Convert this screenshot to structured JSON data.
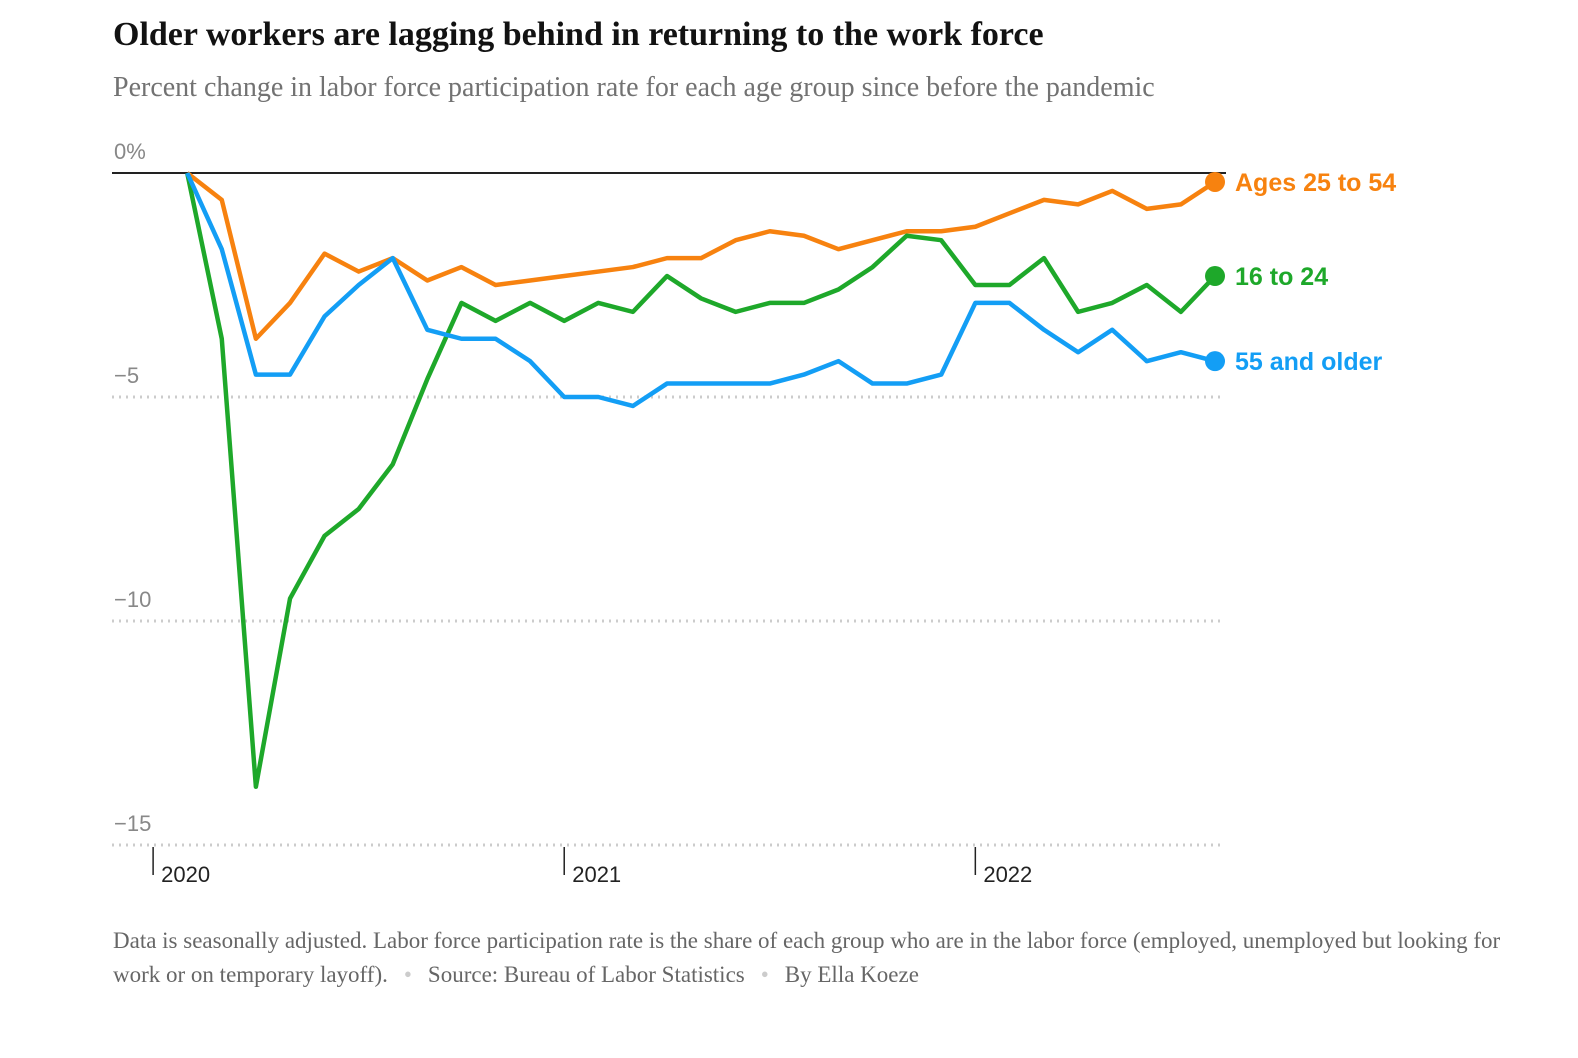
{
  "chart_data": {
    "type": "line",
    "title": "Older workers are lagging behind in returning to the work force",
    "subtitle": "Percent change in labor force participation rate for each age group since before the pandemic",
    "x": [
      2020.083,
      2020.167,
      2020.25,
      2020.333,
      2020.417,
      2020.5,
      2020.583,
      2020.667,
      2020.75,
      2020.833,
      2020.917,
      2021,
      2021.083,
      2021.167,
      2021.25,
      2021.333,
      2021.417,
      2021.5,
      2021.583,
      2021.667,
      2021.75,
      2021.833,
      2021.917,
      2022,
      2022.083,
      2022.167,
      2022.25,
      2022.333,
      2022.417,
      2022.5,
      2022.583
    ],
    "series": [
      {
        "name": "Ages 25 to 54",
        "color": "#f7820f",
        "values": [
          0,
          -0.6,
          -3.7,
          -2.9,
          -1.8,
          -2.2,
          -1.9,
          -2.4,
          -2.1,
          -2.5,
          -2.4,
          -2.3,
          -2.2,
          -2.1,
          -1.9,
          -1.9,
          -1.5,
          -1.3,
          -1.4,
          -1.7,
          -1.5,
          -1.3,
          -1.3,
          -1.2,
          -0.9,
          -0.6,
          -0.7,
          -0.4,
          -0.8,
          -0.7,
          -0.2
        ]
      },
      {
        "name": "16 to 24",
        "color": "#1ea82a",
        "values": [
          0,
          -3.7,
          -13.7,
          -9.5,
          -8.1,
          -7.5,
          -6.5,
          -4.6,
          -2.9,
          -3.3,
          -2.9,
          -3.3,
          -2.9,
          -3.1,
          -2.3,
          -2.8,
          -3.1,
          -2.9,
          -2.9,
          -2.6,
          -2.1,
          -1.4,
          -1.5,
          -2.5,
          -2.5,
          -1.9,
          -3.1,
          -2.9,
          -2.5,
          -3.1,
          -2.3
        ]
      },
      {
        "name": "55 and older",
        "color": "#139ef5",
        "values": [
          0,
          -1.7,
          -4.5,
          -4.5,
          -3.2,
          -2.5,
          -1.9,
          -3.5,
          -3.7,
          -3.7,
          -4.2,
          -5.0,
          -5.0,
          -5.2,
          -4.7,
          -4.7,
          -4.7,
          -4.7,
          -4.5,
          -4.2,
          -4.7,
          -4.7,
          -4.5,
          -2.9,
          -2.9,
          -3.5,
          -4.0,
          -3.5,
          -4.2,
          -4.0,
          -4.2
        ]
      }
    ],
    "xlim": [
      2019.9,
      2022.6
    ],
    "xticks": [
      2020,
      2021,
      2022
    ],
    "ylim": [
      -15,
      0
    ],
    "yticks": [
      {
        "value": 0,
        "label": "0%"
      },
      {
        "value": -5,
        "label": "−5"
      },
      {
        "value": -10,
        "label": "−10"
      },
      {
        "value": -15,
        "label": "−15"
      }
    ],
    "grid": true,
    "note": "Data is seasonally adjusted. Labor force participation rate is the share of each group who are in the labor force (employed, unemployed but looking for work or on temporary layoff).",
    "source": "Source: Bureau of Labor Statistics",
    "byline": "By Ella Koeze"
  }
}
